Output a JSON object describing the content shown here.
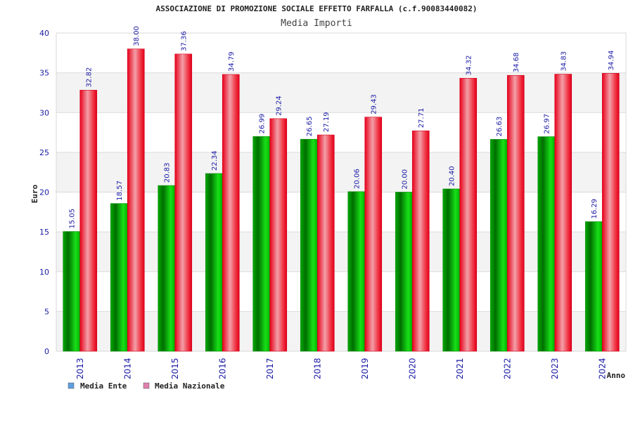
{
  "chart_data": {
    "type": "bar",
    "title": "ASSOCIAZIONE DI PROMOZIONE SOCIALE EFFETTO FARFALLA (c.f.90083440082)",
    "subtitle": "Media Importi",
    "xlabel": "Anno",
    "ylabel": "Euro",
    "ylim": [
      0,
      40
    ],
    "yticks": [
      0,
      5,
      10,
      15,
      20,
      25,
      30,
      35,
      40
    ],
    "grid": true,
    "legend_position": "bottom-left",
    "categories": [
      "2013",
      "2014",
      "2015",
      "2016",
      "2017",
      "2018",
      "2019",
      "2020",
      "2021",
      "2022",
      "2023",
      "2024"
    ],
    "series": [
      {
        "name": "Media Ente",
        "color": "#00b000",
        "legend_color": "#5fa0e0",
        "values": [
          15.05,
          18.57,
          20.83,
          22.34,
          26.99,
          26.65,
          20.06,
          20.0,
          20.4,
          26.63,
          26.97,
          16.29
        ],
        "labels": [
          "15.05",
          "18.57",
          "20.83",
          "22.34",
          "26.99",
          "26.65",
          "20.06",
          "20.00",
          "20.40",
          "26.63",
          "26.97",
          "16.29"
        ]
      },
      {
        "name": "Media Nazionale",
        "color": "#f01020",
        "legend_color": "#e080b0",
        "values": [
          32.82,
          38.0,
          37.36,
          34.79,
          29.24,
          27.19,
          29.43,
          27.71,
          34.32,
          34.68,
          34.83,
          34.94
        ],
        "labels": [
          "32.82",
          "38.00",
          "37.36",
          "34.79",
          "29.24",
          "27.19",
          "29.43",
          "27.71",
          "34.32",
          "34.68",
          "34.83",
          "34.94"
        ]
      }
    ]
  }
}
